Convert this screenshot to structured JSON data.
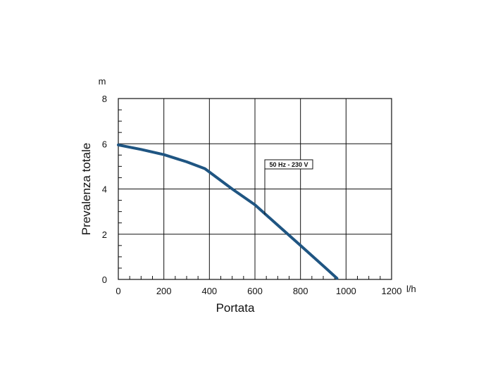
{
  "chart_data": {
    "type": "line",
    "xlabel": "Portata",
    "ylabel": "Prevalenza totale",
    "x_unit": "l/h",
    "y_unit": "m",
    "xlim": [
      0,
      1200
    ],
    "ylim": [
      0,
      8
    ],
    "x_ticks": [
      "0",
      "200",
      "400",
      "600",
      "800",
      "1000",
      "1200"
    ],
    "y_ticks": [
      "0",
      "2",
      "4",
      "6",
      "8"
    ],
    "grid": true,
    "series": [
      {
        "name": "50 Hz - 230 V",
        "color": "#1f5582",
        "x": [
          0,
          100,
          200,
          300,
          380,
          400,
          500,
          600,
          700,
          800,
          900,
          960
        ],
        "y": [
          5.95,
          5.75,
          5.52,
          5.2,
          4.9,
          4.75,
          4.0,
          3.3,
          2.4,
          1.5,
          0.6,
          0.05
        ]
      }
    ]
  }
}
